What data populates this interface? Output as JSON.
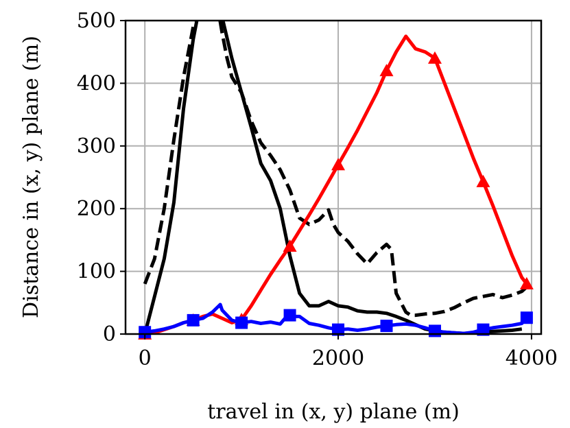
{
  "chart_data": {
    "type": "line",
    "title": "",
    "xlabel": "travel in (x, y) plane (m)",
    "ylabel": "Distance in (x, y) plane (m)",
    "xlim": [
      -200,
      4100
    ],
    "ylim": [
      0,
      500
    ],
    "xticks": [
      0,
      2000,
      4000
    ],
    "yticks": [
      0,
      100,
      200,
      300,
      400,
      500
    ],
    "grid": true,
    "legend": "none",
    "series": [
      {
        "color": "#000000",
        "style": "solid",
        "marker": "none",
        "x": [
          0,
          100,
          200,
          300,
          400,
          500,
          550,
          580,
          600,
          700,
          750,
          800,
          900,
          1000,
          1100,
          1200,
          1300,
          1400,
          1500,
          1600,
          1700,
          1800,
          1900,
          2000,
          2100,
          2200,
          2300,
          2400,
          2500,
          2600,
          2700,
          2800,
          2900,
          3000,
          3100,
          3200,
          3300,
          3400,
          3500,
          3600,
          3700,
          3800,
          3900
        ],
        "y": [
          0,
          60,
          120,
          210,
          360,
          470,
          510,
          520,
          530,
          540,
          530,
          505,
          440,
          385,
          330,
          272,
          245,
          200,
          125,
          65,
          45,
          45,
          52,
          45,
          43,
          37,
          35,
          35,
          33,
          28,
          22,
          15,
          8,
          5,
          3,
          2,
          1,
          2,
          3,
          4,
          5,
          6,
          8
        ]
      },
      {
        "color": "#000000",
        "style": "dashed",
        "marker": "none",
        "x": [
          0,
          100,
          200,
          300,
          400,
          500,
          600,
          700,
          750,
          800,
          850,
          900,
          1000,
          1100,
          1200,
          1300,
          1400,
          1500,
          1600,
          1700,
          1800,
          1900,
          1950,
          2000,
          2100,
          2200,
          2300,
          2400,
          2500,
          2550,
          2600,
          2700,
          2750,
          2800,
          2900,
          3000,
          3100,
          3200,
          3300,
          3400,
          3500,
          3600,
          3700,
          3800,
          3900,
          3950
        ],
        "y": [
          80,
          120,
          200,
          310,
          410,
          490,
          520,
          535,
          525,
          480,
          440,
          410,
          385,
          340,
          305,
          285,
          262,
          230,
          185,
          175,
          182,
          198,
          175,
          162,
          148,
          128,
          112,
          130,
          143,
          135,
          65,
          35,
          30,
          30,
          32,
          33,
          36,
          42,
          50,
          57,
          60,
          63,
          58,
          62,
          68,
          75
        ]
      },
      {
        "color": "#ff0000",
        "style": "solid",
        "marker": "triangle",
        "marker_x": [
          0,
          500,
          1000,
          1500,
          2000,
          2500,
          3000,
          3500,
          3950
        ],
        "x": [
          0,
          100,
          200,
          300,
          400,
          500,
          600,
          700,
          800,
          900,
          1000,
          1100,
          1200,
          1300,
          1400,
          1500,
          1600,
          1700,
          1800,
          1900,
          2000,
          2100,
          2200,
          2300,
          2400,
          2500,
          2600,
          2700,
          2800,
          2900,
          3000,
          3100,
          3200,
          3300,
          3400,
          3500,
          3600,
          3700,
          3800,
          3900,
          3950
        ],
        "y": [
          0,
          2,
          7,
          12,
          18,
          22,
          28,
          32,
          25,
          18,
          23,
          45,
          70,
          95,
          118,
          140,
          165,
          190,
          216,
          243,
          270,
          297,
          325,
          355,
          385,
          420,
          450,
          475,
          455,
          450,
          440,
          400,
          360,
          320,
          280,
          243,
          205,
          165,
          125,
          90,
          80
        ]
      },
      {
        "color": "#0000ff",
        "style": "solid",
        "marker": "square",
        "marker_x": [
          0,
          500,
          1000,
          1500,
          2000,
          2500,
          3000,
          3500,
          3950
        ],
        "x": [
          0,
          100,
          200,
          300,
          400,
          500,
          600,
          700,
          780,
          800,
          850,
          900,
          1000,
          1100,
          1200,
          1300,
          1400,
          1450,
          1500,
          1550,
          1600,
          1700,
          1800,
          1900,
          2000,
          2100,
          2200,
          2300,
          2400,
          2500,
          2600,
          2700,
          2800,
          2900,
          3000,
          3100,
          3200,
          3300,
          3400,
          3500,
          3600,
          3700,
          3800,
          3900,
          3950
        ],
        "y": [
          3,
          5,
          8,
          12,
          18,
          22,
          25,
          35,
          47,
          38,
          30,
          22,
          18,
          20,
          17,
          19,
          16,
          25,
          30,
          28,
          28,
          17,
          14,
          10,
          7,
          8,
          6,
          8,
          11,
          13,
          15,
          16,
          14,
          10,
          5,
          3,
          2,
          1,
          3,
          7,
          10,
          12,
          14,
          17,
          26
        ]
      }
    ]
  }
}
